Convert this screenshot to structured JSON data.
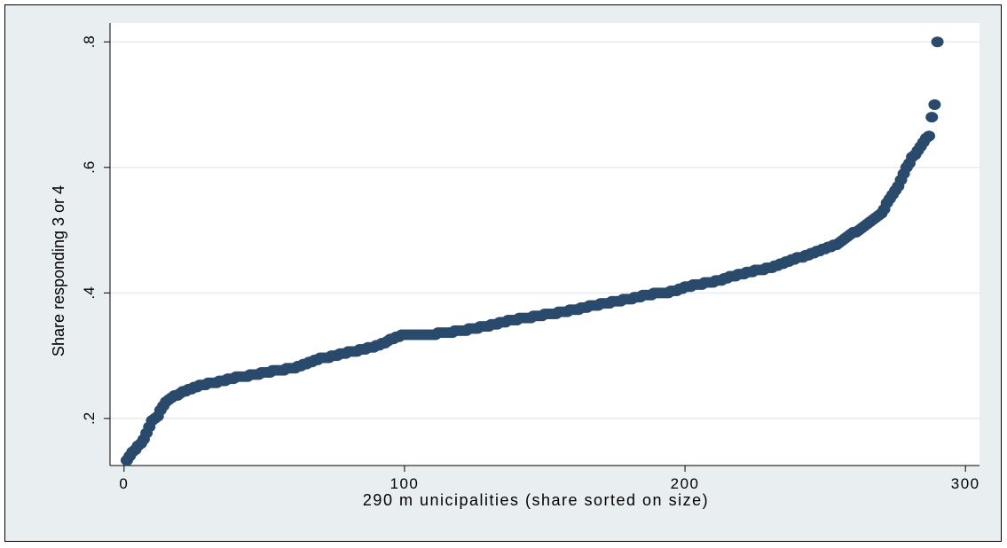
{
  "chart_data": {
    "type": "scatter",
    "title": "",
    "xlabel": "290 m unicipalities (share sorted on size)",
    "ylabel": "Share responding 3 or 4",
    "xlim": [
      -5,
      305
    ],
    "ylim": [
      0.125,
      0.83
    ],
    "x_ticks": [
      0,
      100,
      200,
      300
    ],
    "x_tick_labels": [
      "0",
      "100",
      "200",
      "300"
    ],
    "y_ticks": [
      0.2,
      0.4,
      0.6,
      0.8
    ],
    "y_tick_labels": [
      ".2",
      ".4",
      ".6",
      ".8"
    ],
    "grid": "horizontal",
    "marker_color": "#2a4a6c",
    "background_color": "#e9eef1",
    "plot_background_color": "#ffffff",
    "series": [
      {
        "curve": [
          [
            1,
            0.133
          ],
          [
            2,
            0.14
          ],
          [
            4,
            0.15
          ],
          [
            6,
            0.16
          ],
          [
            8,
            0.175
          ],
          [
            10,
            0.195
          ],
          [
            12,
            0.205
          ],
          [
            14,
            0.22
          ],
          [
            16,
            0.23
          ],
          [
            20,
            0.24
          ],
          [
            25,
            0.25
          ],
          [
            30,
            0.255
          ],
          [
            40,
            0.265
          ],
          [
            50,
            0.273
          ],
          [
            60,
            0.28
          ],
          [
            70,
            0.295
          ],
          [
            80,
            0.305
          ],
          [
            90,
            0.315
          ],
          [
            97,
            0.33
          ],
          [
            100,
            0.333
          ],
          [
            110,
            0.334
          ],
          [
            120,
            0.34
          ],
          [
            130,
            0.348
          ],
          [
            140,
            0.358
          ],
          [
            150,
            0.365
          ],
          [
            160,
            0.373
          ],
          [
            170,
            0.382
          ],
          [
            180,
            0.39
          ],
          [
            190,
            0.4
          ],
          [
            196,
            0.402
          ],
          [
            200,
            0.41
          ],
          [
            210,
            0.418
          ],
          [
            220,
            0.43
          ],
          [
            230,
            0.44
          ],
          [
            240,
            0.455
          ],
          [
            250,
            0.47
          ],
          [
            255,
            0.48
          ],
          [
            260,
            0.495
          ],
          [
            265,
            0.51
          ],
          [
            270,
            0.525
          ],
          [
            273,
            0.55
          ],
          [
            276,
            0.57
          ],
          [
            279,
            0.6
          ],
          [
            281,
            0.615
          ],
          [
            283,
            0.625
          ],
          [
            285,
            0.64
          ],
          [
            287,
            0.65
          ],
          [
            288,
            0.68
          ],
          [
            289,
            0.7
          ],
          [
            290,
            0.8
          ]
        ]
      }
    ]
  }
}
